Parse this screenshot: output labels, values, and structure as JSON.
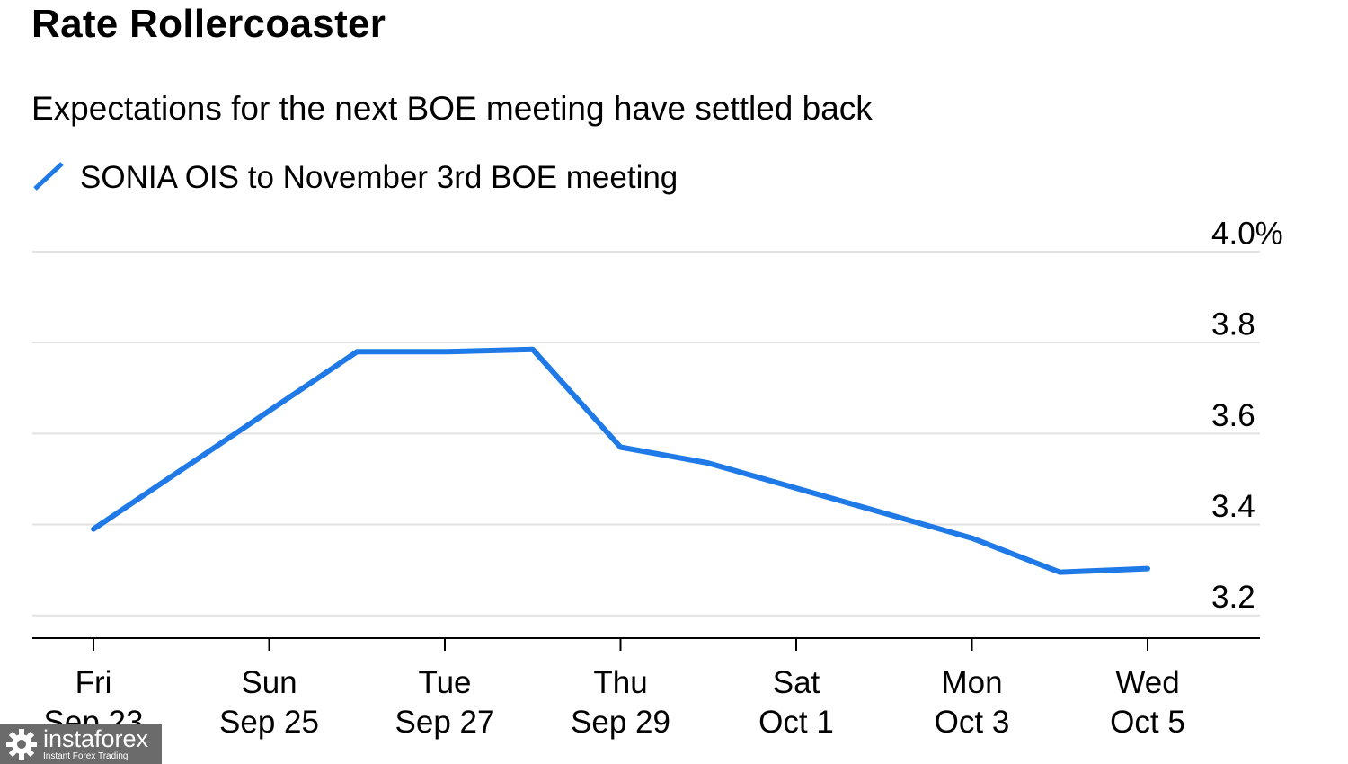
{
  "chart_data": {
    "type": "line",
    "title": "Rate Rollercoaster",
    "subtitle": "Expectations for the next BOE meeting have settled back",
    "x": [
      "Sep 23",
      "Sep 24",
      "Sep 25",
      "Sep 26",
      "Sep 27",
      "Sep 28",
      "Sep 29",
      "Sep 30",
      "Oct 1",
      "Oct 2",
      "Oct 3",
      "Oct 4",
      "Oct 5"
    ],
    "series": [
      {
        "name": "SONIA OIS to November 3rd BOE meeting",
        "color": "#1f7ae8",
        "values": [
          3.39,
          3.52,
          3.65,
          3.78,
          3.78,
          3.785,
          3.57,
          3.535,
          3.48,
          3.425,
          3.37,
          3.295,
          3.303
        ]
      }
    ],
    "x_ticks": [
      {
        "x": "Sep 23",
        "line1": "Fri",
        "line2": "Sep 23"
      },
      {
        "x": "Sep 25",
        "line1": "Sun",
        "line2": "Sep 25"
      },
      {
        "x": "Sep 27",
        "line1": "Tue",
        "line2": "Sep 27"
      },
      {
        "x": "Sep 29",
        "line1": "Thu",
        "line2": "Sep 29"
      },
      {
        "x": "Oct 1",
        "line1": "Sat",
        "line2": "Oct 1"
      },
      {
        "x": "Oct 3",
        "line1": "Mon",
        "line2": "Oct 3"
      },
      {
        "x": "Oct 5",
        "line1": "Wed",
        "line2": "Oct 5"
      }
    ],
    "y_ticks": [
      {
        "value": 3.2,
        "label": "3.2"
      },
      {
        "value": 3.4,
        "label": "3.4"
      },
      {
        "value": 3.6,
        "label": "3.6"
      },
      {
        "value": 3.8,
        "label": "3.8"
      },
      {
        "value": 4.0,
        "label": "4.0%"
      }
    ],
    "ylim": [
      3.15,
      4.0
    ],
    "grid": true,
    "legend_position": "top-left",
    "y_axis_side": "right",
    "gridline_color": "#e2e2e2",
    "axis_color": "#000000"
  },
  "watermark": {
    "brand": "instaforex",
    "tagline": "Instant Forex Trading",
    "background": "#6b6b6b"
  }
}
